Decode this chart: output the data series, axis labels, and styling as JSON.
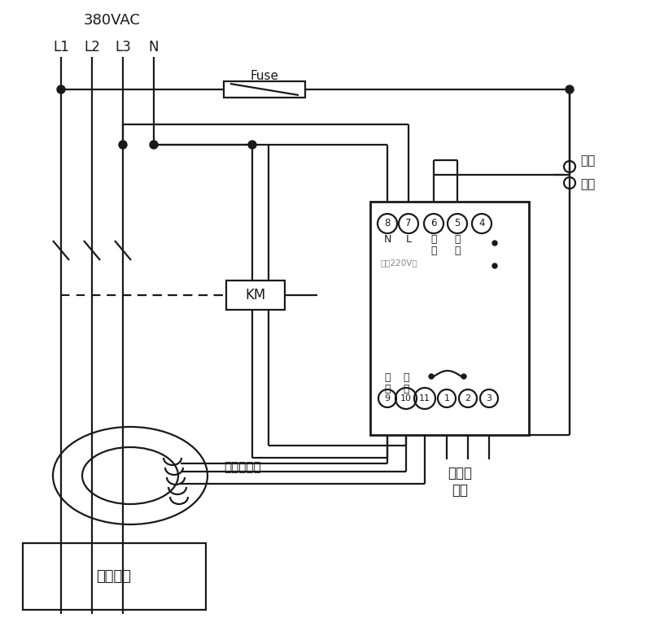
{
  "bg_color": "#ffffff",
  "line_color": "#1a1a1a",
  "voltage_label": "380VAC",
  "phase_labels": [
    "L1",
    "L2",
    "L3",
    "N"
  ],
  "fuse_label": "Fuse",
  "km_label": "KM",
  "transformer_label": "零序互感器",
  "device_label": "用戶設備",
  "relay_label1": "接聲光",
  "relay_label2": "報警",
  "self_lock1": "自鎖",
  "self_lock2": "開關",
  "top_terminals": [
    "8",
    "7",
    "6",
    "5",
    "4"
  ],
  "bottom_terminals": [
    "9",
    "10",
    "11",
    "1",
    "2",
    "3"
  ],
  "power_label": "電源220V～",
  "xL1": 75,
  "xL2": 113,
  "xL3": 151,
  "xN": 189,
  "xRL": 455,
  "xRR": 650,
  "xOUT": 700,
  "yBUS": 110,
  "yJUNC": 178,
  "yRT": 248,
  "yTT": 275,
  "yBT": 490,
  "yRB": 535,
  "yKM": 363,
  "yTOR": 585,
  "yDEVT": 668,
  "yDEVB": 750
}
